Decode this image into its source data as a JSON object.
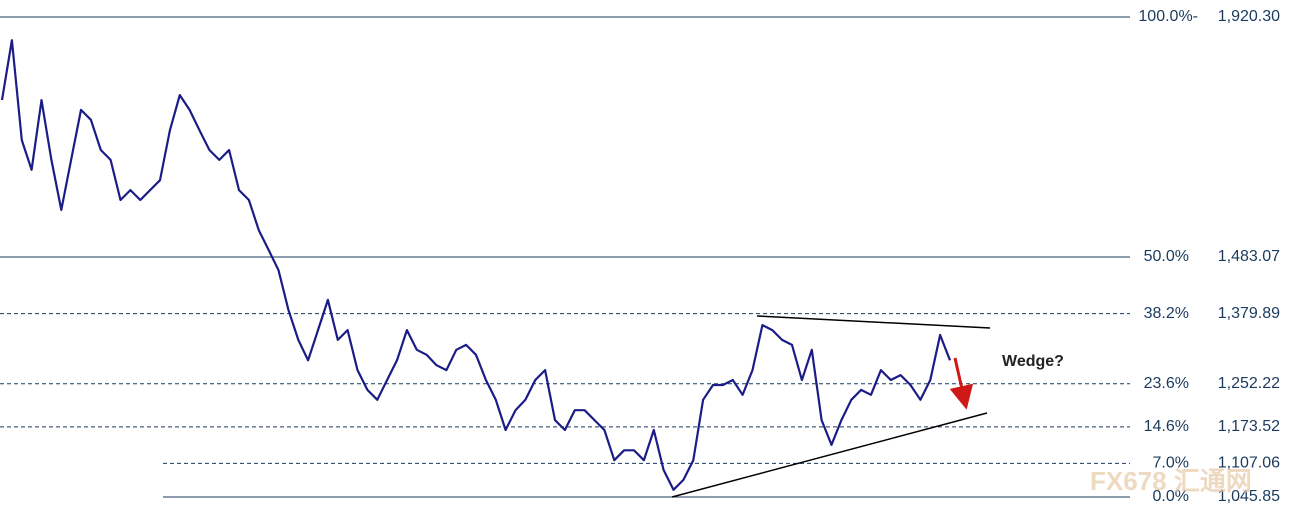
{
  "chart_data": {
    "type": "line",
    "ylim": [
      1005.8,
      1951.3
    ],
    "levels": [
      {
        "pct": "100.0%-",
        "value": 1920.3,
        "label": "1,920.30",
        "style": "solid"
      },
      {
        "pct": "50.0%",
        "value": 1483.07,
        "label": "1,483.07",
        "style": "solid"
      },
      {
        "pct": "38.2%",
        "value": 1379.89,
        "label": "1,379.89",
        "style": "dashed"
      },
      {
        "pct": "23.6%",
        "value": 1252.22,
        "label": "1,252.22",
        "style": "dashed"
      },
      {
        "pct": "14.6%",
        "value": 1173.52,
        "label": "1,173.52",
        "style": "dashed"
      },
      {
        "pct": "7.0%",
        "value": 1107.06,
        "label": "1,107.06",
        "style": "dashed"
      },
      {
        "pct": "0.0%",
        "value": 1045.85,
        "label": "1,045.85",
        "style": "solid"
      }
    ],
    "series": [
      {
        "color": "#1c1c86",
        "values": [
          1769,
          1878,
          1696,
          1642,
          1769,
          1660,
          1569,
          1660,
          1751,
          1733,
          1678,
          1660,
          1587,
          1605,
          1587,
          1605,
          1623,
          1714,
          1778,
          1751,
          1714,
          1678,
          1660,
          1678,
          1605,
          1587,
          1532,
          1496,
          1459,
          1387,
          1332,
          1295,
          1350,
          1405,
          1332,
          1350,
          1277,
          1241,
          1223,
          1259,
          1295,
          1350,
          1314,
          1305,
          1286,
          1277,
          1314,
          1323,
          1305,
          1259,
          1223,
          1168,
          1204,
          1223,
          1259,
          1277,
          1186,
          1168,
          1204,
          1204,
          1186,
          1168,
          1113,
          1131,
          1131,
          1113,
          1168,
          1095,
          1059,
          1077,
          1113,
          1223,
          1250,
          1250,
          1259,
          1232,
          1277,
          1359,
          1350,
          1332,
          1323,
          1259,
          1314,
          1186,
          1141,
          1186,
          1223,
          1241,
          1232,
          1277,
          1259,
          1268,
          1250,
          1223,
          1259,
          1341,
          1295
        ]
      }
    ],
    "annotation": "Wedge?",
    "watermark": "FX678 汇通网"
  }
}
